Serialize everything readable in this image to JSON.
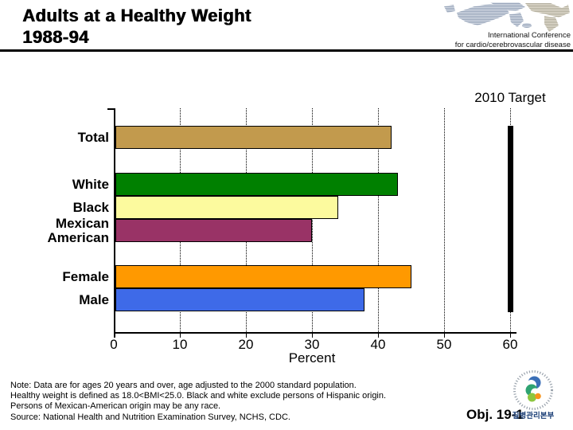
{
  "slide": {
    "title_line1": "Adults at a Healthy Weight",
    "title_line2": "1988-94",
    "conference": {
      "line1": "International Conference",
      "line2": "for cardio/cerebrovascular disease"
    },
    "objective_label": "Obj. 19-1",
    "logo_caption": "질병관리본부"
  },
  "chart_data": {
    "type": "bar",
    "orientation": "horizontal",
    "title": "Adults at a Healthy Weight 1988-94",
    "categories": [
      "Total",
      "White",
      "Black",
      "Mexican American",
      "Female",
      "Male"
    ],
    "values": [
      42,
      43,
      34,
      30,
      45,
      38
    ],
    "bar_colors": [
      "#C29A4D",
      "#008000",
      "#FCFA9E",
      "#993366",
      "#FF9900",
      "#3E6AE8"
    ],
    "target": {
      "label": "2010 Target",
      "value": 60,
      "color": "#000000"
    },
    "xlabel": "Percent",
    "x_ticks": [
      0,
      10,
      20,
      30,
      40,
      50,
      60
    ],
    "xlim": [
      0,
      61
    ],
    "gridlines": "vertical dotted",
    "unit": "percent of adults"
  },
  "notes": [
    "Note:  Data are for ages 20 years and over, age adjusted to the 2000 standard population.",
    "Healthy weight is defined as 18.0<BMI<25.0.  Black and white exclude persons of Hispanic origin.",
    "Persons of Mexican-American origin may be any race.",
    "Source: National Health and Nutrition Examination Survey, NCHS, CDC."
  ]
}
